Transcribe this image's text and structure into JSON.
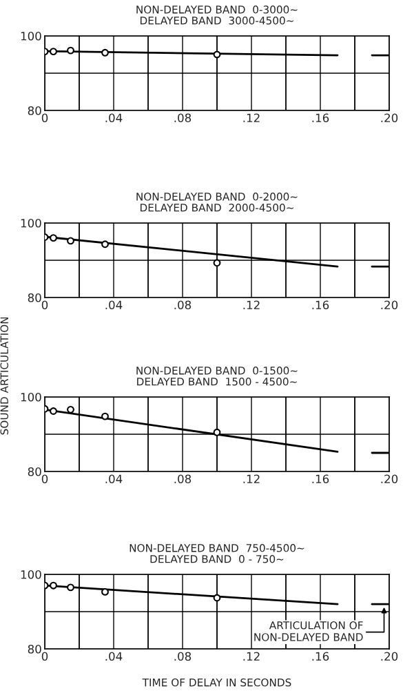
{
  "chart_data": [
    {
      "type": "scatter",
      "title": "NON-DELAYED BAND  0-3000~\nDELAYED BAND  3000-4500~",
      "xlim": [
        0,
        0.2
      ],
      "ylim": [
        80,
        100
      ],
      "xticks": [
        {
          "value": 0,
          "label": "0"
        },
        {
          "value": 0.02,
          "label": null
        },
        {
          "value": 0.04,
          "label": ".04"
        },
        {
          "value": 0.06,
          "label": null
        },
        {
          "value": 0.08,
          "label": ".08"
        },
        {
          "value": 0.1,
          "label": null
        },
        {
          "value": 0.12,
          "label": ".12"
        },
        {
          "value": 0.14,
          "label": null
        },
        {
          "value": 0.16,
          "label": ".16"
        },
        {
          "value": 0.18,
          "label": null
        },
        {
          "value": 0.2,
          "label": ".20"
        }
      ],
      "yticks": [
        80,
        100
      ],
      "grid": true,
      "ref_lines": [
        {
          "axis": "y",
          "value": 90
        }
      ],
      "series": [
        {
          "type": "scatter",
          "marker": "circle",
          "color": "#000000",
          "x": [
            0,
            0.005,
            0.015,
            0.035,
            0.1
          ],
          "values": [
            95.8,
            95.8,
            96.1,
            95.5,
            95.0
          ]
        },
        {
          "type": "line",
          "color": "#000000",
          "x": [
            0,
            0.17
          ],
          "values": [
            95.9,
            94.8
          ]
        },
        {
          "type": "line",
          "color": "#000000",
          "x": [
            0.19,
            0.2
          ],
          "values": [
            94.8,
            94.8
          ]
        }
      ]
    },
    {
      "type": "scatter",
      "title": "NON-DELAYED BAND  0-2000~\nDELAYED BAND  2000-4500~",
      "ylabel": "SOUND ARTICULATION",
      "xlim": [
        0,
        0.2
      ],
      "ylim": [
        80,
        100
      ],
      "xticks": [
        {
          "value": 0,
          "label": "0"
        },
        {
          "value": 0.02,
          "label": null
        },
        {
          "value": 0.04,
          "label": ".04"
        },
        {
          "value": 0.06,
          "label": null
        },
        {
          "value": 0.08,
          "label": ".08"
        },
        {
          "value": 0.1,
          "label": null
        },
        {
          "value": 0.12,
          "label": ".12"
        },
        {
          "value": 0.14,
          "label": null
        },
        {
          "value": 0.16,
          "label": ".16"
        },
        {
          "value": 0.18,
          "label": null
        },
        {
          "value": 0.2,
          "label": ".20"
        }
      ],
      "yticks": [
        80,
        100
      ],
      "grid": true,
      "ref_lines": [
        {
          "axis": "y",
          "value": 90
        }
      ],
      "series": [
        {
          "type": "scatter",
          "marker": "circle",
          "color": "#000000",
          "x": [
            0,
            0.005,
            0.015,
            0.035,
            0.1
          ],
          "values": [
            96.2,
            96.0,
            95.2,
            94.3,
            89.3
          ]
        },
        {
          "type": "line",
          "color": "#000000",
          "x": [
            0,
            0.17
          ],
          "values": [
            96.3,
            88.3
          ]
        },
        {
          "type": "line",
          "color": "#000000",
          "x": [
            0.19,
            0.2
          ],
          "values": [
            88.3,
            88.3
          ]
        }
      ]
    },
    {
      "type": "scatter",
      "title": "NON-DELAYED BAND  0-1500~\nDELAYED BAND  1500 - 4500~",
      "xlim": [
        0,
        0.2
      ],
      "ylim": [
        80,
        100
      ],
      "xticks": [
        {
          "value": 0,
          "label": "0"
        },
        {
          "value": 0.02,
          "label": null
        },
        {
          "value": 0.04,
          "label": ".04"
        },
        {
          "value": 0.06,
          "label": null
        },
        {
          "value": 0.08,
          "label": ".08"
        },
        {
          "value": 0.1,
          "label": null
        },
        {
          "value": 0.12,
          "label": ".12"
        },
        {
          "value": 0.14,
          "label": null
        },
        {
          "value": 0.16,
          "label": ".16"
        },
        {
          "value": 0.18,
          "label": null
        },
        {
          "value": 0.2,
          "label": ".20"
        }
      ],
      "yticks": [
        80,
        100
      ],
      "grid": true,
      "ref_lines": [
        {
          "axis": "y",
          "value": 90
        }
      ],
      "series": [
        {
          "type": "scatter",
          "marker": "circle",
          "color": "#000000",
          "x": [
            0,
            0.005,
            0.015,
            0.035,
            0.1
          ],
          "values": [
            96.8,
            96.2,
            96.6,
            94.8,
            90.5
          ]
        },
        {
          "type": "line",
          "color": "#000000",
          "x": [
            0,
            0.17
          ],
          "values": [
            96.6,
            85.3
          ]
        },
        {
          "type": "line",
          "color": "#000000",
          "x": [
            0.19,
            0.2
          ],
          "values": [
            85.0,
            85.0
          ]
        }
      ]
    },
    {
      "type": "scatter",
      "title": "NON-DELAYED BAND  750-4500~\nDELAYED BAND  0 - 750~",
      "xlabel": "TIME OF DELAY IN SECONDS",
      "xlim": [
        0,
        0.2
      ],
      "ylim": [
        80,
        100
      ],
      "xticks": [
        {
          "value": 0,
          "label": "0"
        },
        {
          "value": 0.02,
          "label": null
        },
        {
          "value": 0.04,
          "label": ".04"
        },
        {
          "value": 0.06,
          "label": null
        },
        {
          "value": 0.08,
          "label": ".08"
        },
        {
          "value": 0.1,
          "label": null
        },
        {
          "value": 0.12,
          "label": ".12"
        },
        {
          "value": 0.14,
          "label": null
        },
        {
          "value": 0.16,
          "label": ".16"
        },
        {
          "value": 0.18,
          "label": null
        },
        {
          "value": 0.2,
          "label": ".20"
        }
      ],
      "yticks": [
        80,
        100
      ],
      "grid": true,
      "ref_lines": [
        {
          "axis": "y",
          "value": 90
        }
      ],
      "annotations": [
        {
          "text": "ARTICULATION OF\nNON-DELAYED BAND",
          "x": 0.2,
          "y": 92.0
        }
      ],
      "series": [
        {
          "type": "scatter",
          "marker": "circle",
          "color": "#000000",
          "x": [
            0,
            0.005,
            0.015,
            0.035,
            0.1
          ],
          "values": [
            97.0,
            97.0,
            96.5,
            95.3,
            93.7
          ]
        },
        {
          "type": "line",
          "color": "#000000",
          "x": [
            0,
            0.17
          ],
          "values": [
            97.0,
            92.0
          ]
        },
        {
          "type": "line",
          "color": "#000000",
          "x": [
            0.19,
            0.2
          ],
          "values": [
            92.0,
            92.0
          ]
        }
      ]
    }
  ]
}
